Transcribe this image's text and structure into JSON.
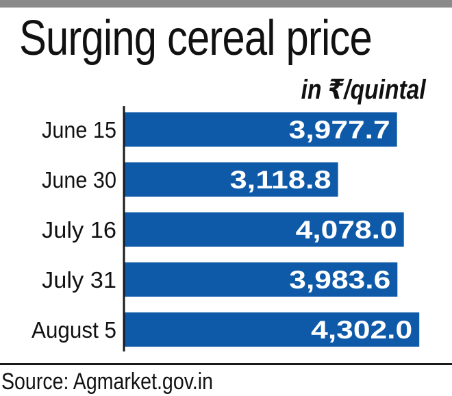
{
  "chart_data": {
    "type": "bar",
    "orientation": "horizontal",
    "title": "Surging cereal price",
    "unit": "in ₹/quintal",
    "categories": [
      "June 15",
      "June 30",
      "July 16",
      "July 31",
      "August 5"
    ],
    "values": [
      3977.7,
      3118.8,
      4078.0,
      3983.6,
      4302.0
    ],
    "value_labels": [
      "3,977.7",
      "3,118.8",
      "4,078.0",
      "3,983.6",
      "4,302.0"
    ],
    "xlim": [
      0,
      4400
    ],
    "bar_color": "#0f5aa8",
    "source": "Source: Agmarket.gov.in"
  }
}
